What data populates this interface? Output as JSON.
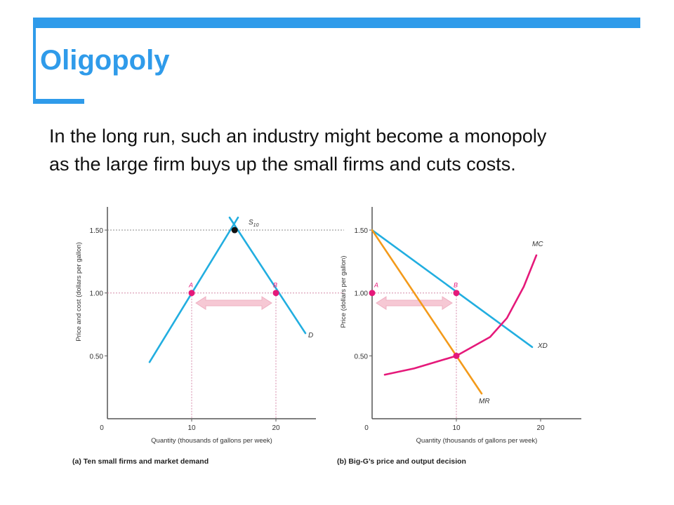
{
  "slide": {
    "title": "Oligopoly",
    "body_lines": [
      "In the long run, such an industry might become a monopoly",
      "as the large firm buys up the small firms and cuts costs."
    ]
  },
  "colors": {
    "accent": "#2f9bea",
    "demand": "#22aee0",
    "mr": "#f39a1a",
    "mc": "#e5197a",
    "point_marker": "#e5197a",
    "arrow": "#f6c8d4",
    "guide": "#d58aa9"
  },
  "chart_data": [
    {
      "type": "line",
      "caption": "(a) Ten small firms and market demand",
      "xlabel": "Quantity (thousands of gallons per week)",
      "ylabel": "Price and cost (dollars per gallon)",
      "xlim": [
        0,
        25
      ],
      "ylim": [
        0,
        1.75
      ],
      "x_ticks": [
        "0",
        "10",
        "20"
      ],
      "x_tick_values": [
        0,
        10,
        20
      ],
      "y_ticks": [
        "0.50",
        "1.00",
        "1.50"
      ],
      "y_tick_values": [
        0.5,
        1.0,
        1.5
      ],
      "series": [
        {
          "name": "S10",
          "label_main": "S",
          "label_sub": "10",
          "points": [
            [
              5,
              0.45
            ],
            [
              15.5,
              1.6
            ]
          ]
        },
        {
          "name": "D",
          "label_main": "D",
          "label_sub": "",
          "points": [
            [
              14.5,
              1.6
            ],
            [
              23.5,
              0.68
            ]
          ]
        }
      ],
      "points": [
        {
          "label": "A",
          "x": 10,
          "y": 1.0
        },
        {
          "label": "B",
          "x": 20,
          "y": 1.0
        },
        {
          "label": "",
          "x": 15.1,
          "y": 1.5
        }
      ],
      "arrow": {
        "from_x": 10,
        "to_x": 20,
        "y": 0.92
      }
    },
    {
      "type": "line",
      "caption": "(b) Big-G’s price and output decision",
      "xlabel": "Quantity (thousands of gallons per week)",
      "ylabel": "Price (dollars per gallon)",
      "xlim": [
        0,
        25
      ],
      "ylim": [
        0,
        1.75
      ],
      "x_ticks": [
        "0",
        "10",
        "20"
      ],
      "x_tick_values": [
        0,
        10,
        20
      ],
      "y_ticks": [
        "0.50",
        "1.00",
        "1.50"
      ],
      "y_tick_values": [
        0.5,
        1.0,
        1.5
      ],
      "series": [
        {
          "name": "XD",
          "points": [
            [
              0,
              1.5
            ],
            [
              19,
              0.57
            ]
          ]
        },
        {
          "name": "MR",
          "points": [
            [
              0,
              1.5
            ],
            [
              13,
              0.2
            ]
          ]
        },
        {
          "name": "MC",
          "points": [
            [
              1.5,
              0.35
            ],
            [
              5,
              0.4
            ],
            [
              10,
              0.5
            ],
            [
              14,
              0.65
            ],
            [
              16,
              0.8
            ],
            [
              18,
              1.05
            ],
            [
              19.5,
              1.3
            ]
          ]
        }
      ],
      "points": [
        {
          "label": "A",
          "x": 0,
          "y": 1.0
        },
        {
          "label": "B",
          "x": 10,
          "y": 1.0
        },
        {
          "label": "",
          "x": 10,
          "y": 0.5
        }
      ],
      "arrow": {
        "from_x": 0,
        "to_x": 10,
        "y": 0.92
      }
    }
  ]
}
